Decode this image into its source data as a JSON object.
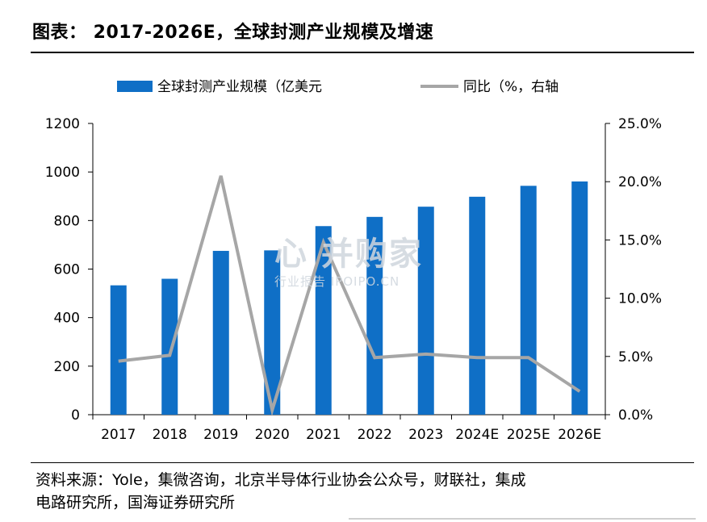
{
  "figure_title": "图表： 2017-2026E，全球封测产业规模及增速",
  "source_text_line1": "资料来源：Yole，集微咨询，北京半导体行业协会公众号，财联社，集成",
  "source_text_line2": "电路研究所，国海证券研究所",
  "watermark": {
    "main": "心 并购家",
    "sub": "行业报告 IPOIPO.CN"
  },
  "colors": {
    "bar": "#0f6fc6",
    "line": "#a6a6a6",
    "axis": "#000000"
  },
  "chart_data": {
    "type": "bar",
    "categories": [
      "2017",
      "2018",
      "2019",
      "2020",
      "2021",
      "2022",
      "2023",
      "2024E",
      "2025E",
      "2026E"
    ],
    "series": [
      {
        "name": "全球封测产业规模（亿美元",
        "type": "bar",
        "axis": "left",
        "values": [
          533,
          560,
          675,
          677,
          777,
          815,
          857,
          898,
          943,
          961
        ]
      },
      {
        "name": "同比（%，右轴",
        "type": "line",
        "axis": "right",
        "values": [
          4.6,
          5.1,
          20.5,
          0.4,
          14.8,
          4.9,
          5.2,
          4.9,
          4.9,
          2.0
        ]
      }
    ],
    "left_axis": {
      "ylim": [
        0,
        1200
      ],
      "ticks": [
        "0",
        "200",
        "400",
        "600",
        "800",
        "1000",
        "1200"
      ]
    },
    "right_axis": {
      "ylim": [
        0,
        25
      ],
      "ticks": [
        "0.0%",
        "5.0%",
        "10.0%",
        "15.0%",
        "20.0%",
        "25.0%"
      ]
    },
    "legend_position": "top",
    "grid": false
  }
}
